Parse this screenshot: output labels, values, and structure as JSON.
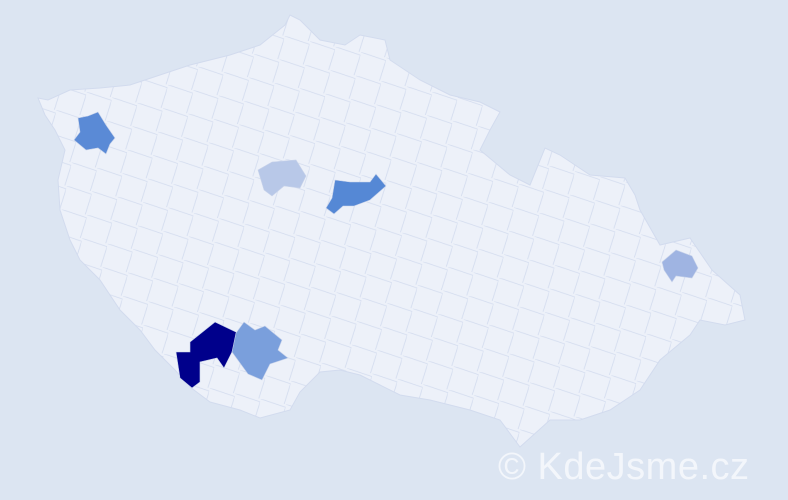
{
  "map": {
    "background_color": "#dce5f2",
    "country_fill": "#edf1f9",
    "border_color": "#c8d3ea",
    "highlighted_regions": [
      {
        "color": "#00008b"
      },
      {
        "color": "#7a9fdc"
      },
      {
        "color": "#5a8ad6"
      },
      {
        "color": "#5588d5"
      },
      {
        "color": "#b8c8e8"
      },
      {
        "color": "#9fb4e2"
      }
    ]
  },
  "watermark": "© KdeJsme.cz"
}
